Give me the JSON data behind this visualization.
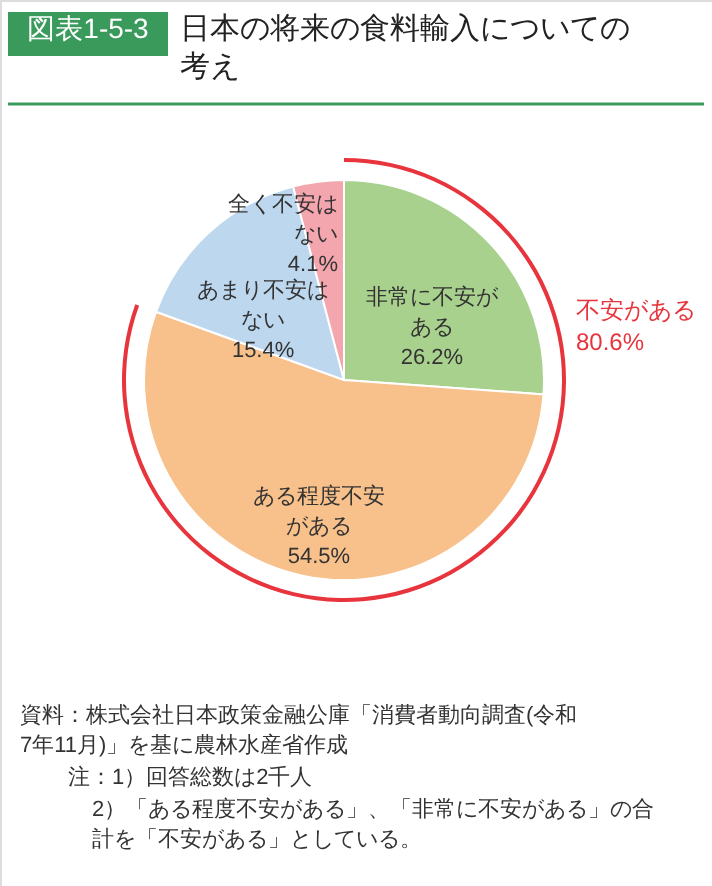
{
  "chart_data": {
    "type": "pie",
    "title": "日本の将来の食料輸入についての考え",
    "categories": [
      "非常に不安がある",
      "ある程度不安がある",
      "あまり不安はない",
      "全く不安はない"
    ],
    "values": [
      26.2,
      54.5,
      15.4,
      4.1
    ],
    "value_labels": [
      "26.2%",
      "54.5%",
      "15.4%",
      "4.1%"
    ],
    "colors": [
      "#a9d18e",
      "#f8c08a",
      "#bdd7ee",
      "#f4a6ae"
    ],
    "annotations": [
      "図表1-5-3",
      "不安がある 80.6%",
      "資料：株式会社日本政策金融公庫「消費者動向調査(令和7年11月)」を基に農林水産省作成",
      "注：1）回答総数は2千人",
      "2）「ある程度不安がある」、「非常に不安がある」の合計を「不安がある」としている。"
    ]
  }
}
